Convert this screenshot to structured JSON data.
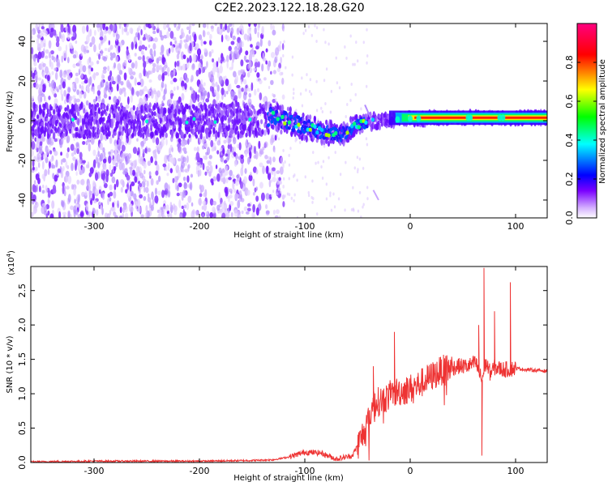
{
  "title": "C2E2.2023.122.18.28.G20",
  "chart_data": [
    {
      "type": "heatmap",
      "xlabel": "Height of straight line (km)",
      "ylabel": "Frequency (Hz)",
      "xlim": [
        -360,
        130
      ],
      "ylim": [
        -49,
        49
      ],
      "xticks": [
        -300,
        -200,
        -100,
        0,
        100
      ],
      "yticks": [
        -40,
        -20,
        0,
        20,
        40
      ],
      "colorbar": {
        "label": "Normalized spectral amplitude",
        "range": [
          0.0,
          1.0
        ],
        "ticks": [
          "0.0",
          "0.2",
          "0.4",
          "0.6",
          "0.8"
        ],
        "colors": [
          "#ffffff",
          "#7a00ff",
          "#0000ff",
          "#00ffff",
          "#00ff00",
          "#ffff00",
          "#ff0000",
          "#ff007f"
        ]
      },
      "noise_region_x": [
        -360,
        -130
      ],
      "band_center_hz": [
        [
          -360,
          0
        ],
        [
          -300,
          0
        ],
        [
          -200,
          0
        ],
        [
          -150,
          0
        ],
        [
          -130,
          2
        ],
        [
          -100,
          -3
        ],
        [
          -80,
          -6
        ],
        [
          -65,
          -7
        ],
        [
          -50,
          -2
        ],
        [
          -30,
          0
        ],
        [
          0,
          1
        ],
        [
          50,
          1.5
        ],
        [
          130,
          1.5
        ]
      ],
      "band_halfwidth_hz": [
        [
          -360,
          8
        ],
        [
          -150,
          8
        ],
        [
          -130,
          7
        ],
        [
          -100,
          6
        ],
        [
          -60,
          5
        ],
        [
          -40,
          4
        ],
        [
          -20,
          3
        ],
        [
          0,
          3
        ],
        [
          130,
          3
        ]
      ],
      "strong_band_x": [
        -20,
        130
      ]
    },
    {
      "type": "line",
      "xlabel": "Height of straight line (km)",
      "ylabel": "SNR (10 * v/v)",
      "yscale_label": "(x10",
      "yscale_exp": "4",
      "yscale_close": ")",
      "xlim": [
        -360,
        130
      ],
      "ylim": [
        0.0,
        2.85
      ],
      "xticks": [
        -300,
        -200,
        -100,
        0,
        100
      ],
      "yticks": [
        "0.0",
        "0.5",
        "1.0",
        "1.5",
        "2.0",
        "2.5"
      ],
      "color": "#ee3333",
      "series": [
        {
          "x": [
            -360,
            -300,
            -200,
            -150,
            -130,
            -115,
            -100,
            -85,
            -70,
            -55,
            -48,
            -40,
            -35,
            -25,
            -15,
            -5,
            5,
            15,
            30,
            45,
            55,
            62,
            68,
            72,
            76,
            80,
            90,
            100,
            110,
            130
          ],
          "y": [
            0.01,
            0.02,
            0.02,
            0.03,
            0.04,
            0.08,
            0.15,
            0.14,
            0.05,
            0.1,
            0.3,
            0.6,
            0.85,
            0.92,
            1.02,
            1.05,
            1.1,
            1.2,
            1.34,
            1.4,
            1.4,
            1.45,
            1.2,
            1.45,
            1.3,
            1.38,
            1.35,
            1.37,
            1.35,
            1.33
          ]
        }
      ],
      "spikes": [
        [
          -35,
          1.4
        ],
        [
          -15,
          1.9
        ],
        [
          65,
          2.0
        ],
        [
          70,
          2.83
        ],
        [
          73,
          1.4
        ],
        [
          80,
          2.2
        ],
        [
          95,
          2.62
        ],
        [
          68,
          0.1
        ],
        [
          -5,
          0.85
        ]
      ]
    }
  ]
}
